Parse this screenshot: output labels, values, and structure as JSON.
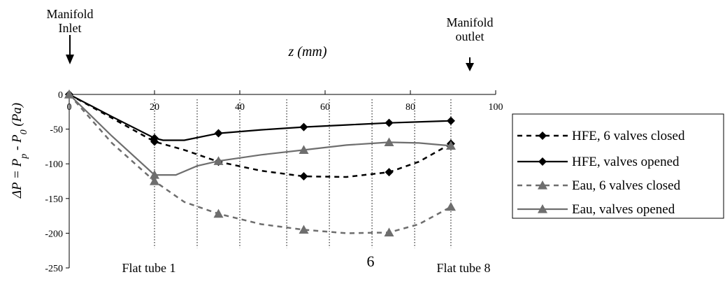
{
  "chart_data": {
    "type": "line",
    "xlabel": "z (mm)",
    "ylabel": "ΔP = P_p - P_0 (Pa)",
    "xlim": [
      0,
      100
    ],
    "ylim": [
      -250,
      0
    ],
    "x_ticks": [
      0,
      20,
      40,
      60,
      80,
      100
    ],
    "y_ticks": [
      0,
      -50,
      -100,
      -150,
      -200,
      -250
    ],
    "grid": "vertical dotted lines at flat tube positions",
    "legend_position": "right",
    "tube_positions": [
      20,
      30,
      40,
      51,
      61,
      71,
      81,
      89.5
    ],
    "series": [
      {
        "name": "HFE, 6  valves closed",
        "style": "dashed",
        "marker": "diamond",
        "color": "#000000",
        "x": [
          0,
          20,
          35,
          55,
          75,
          89.5
        ],
        "y": [
          0,
          -68,
          -97,
          -118,
          -112,
          -71
        ],
        "curve": [
          [
            0,
            0
          ],
          [
            10,
            -34
          ],
          [
            20,
            -68
          ],
          [
            27,
            -80
          ],
          [
            35,
            -97
          ],
          [
            45,
            -110
          ],
          [
            55,
            -118
          ],
          [
            65,
            -119
          ],
          [
            75,
            -112
          ],
          [
            82,
            -97
          ],
          [
            89.5,
            -71
          ]
        ]
      },
      {
        "name": "HFE,  valves opened",
        "style": "solid",
        "marker": "diamond",
        "color": "#000000",
        "x": [
          0,
          20,
          35,
          55,
          75,
          89.5
        ],
        "y": [
          0,
          -63,
          -56,
          -47,
          -41,
          -38
        ],
        "curve": [
          [
            0,
            0
          ],
          [
            10,
            -32
          ],
          [
            20,
            -63
          ],
          [
            22,
            -66
          ],
          [
            27,
            -66
          ],
          [
            35,
            -56
          ],
          [
            45,
            -51
          ],
          [
            55,
            -47
          ],
          [
            65,
            -44
          ],
          [
            75,
            -41
          ],
          [
            89.5,
            -38
          ]
        ]
      },
      {
        "name": "Eau, 6  valves closed",
        "style": "dashed",
        "marker": "triangle",
        "color": "#6e6e6e",
        "x": [
          0,
          20,
          35,
          55,
          75,
          89.5
        ],
        "y": [
          0,
          -125,
          -172,
          -195,
          -199,
          -162
        ],
        "curve": [
          [
            0,
            0
          ],
          [
            10,
            -70
          ],
          [
            20,
            -125
          ],
          [
            27,
            -155
          ],
          [
            35,
            -172
          ],
          [
            45,
            -187
          ],
          [
            55,
            -195
          ],
          [
            65,
            -200
          ],
          [
            75,
            -199
          ],
          [
            82,
            -187
          ],
          [
            89.5,
            -162
          ]
        ]
      },
      {
        "name": "Eau,   valves opened",
        "style": "solid",
        "marker": "triangle",
        "color": "#6e6e6e",
        "x": [
          0,
          20,
          35,
          55,
          75,
          89.5
        ],
        "y": [
          0,
          -116,
          -96,
          -80,
          -69,
          -74
        ],
        "curve": [
          [
            0,
            0
          ],
          [
            10,
            -60
          ],
          [
            20,
            -116
          ],
          [
            25,
            -116
          ],
          [
            30,
            -103
          ],
          [
            35,
            -96
          ],
          [
            45,
            -87
          ],
          [
            55,
            -80
          ],
          [
            65,
            -73
          ],
          [
            75,
            -69
          ],
          [
            82,
            -70
          ],
          [
            89.5,
            -74
          ]
        ]
      }
    ],
    "annotations": {
      "manifold_inlet": "Manifold\nInlet",
      "manifold_outlet": "Manifold\noutlet",
      "flat_tube_first": "Flat tube 1",
      "flat_tube_last": "Flat tube 8",
      "center_note": "6"
    }
  }
}
